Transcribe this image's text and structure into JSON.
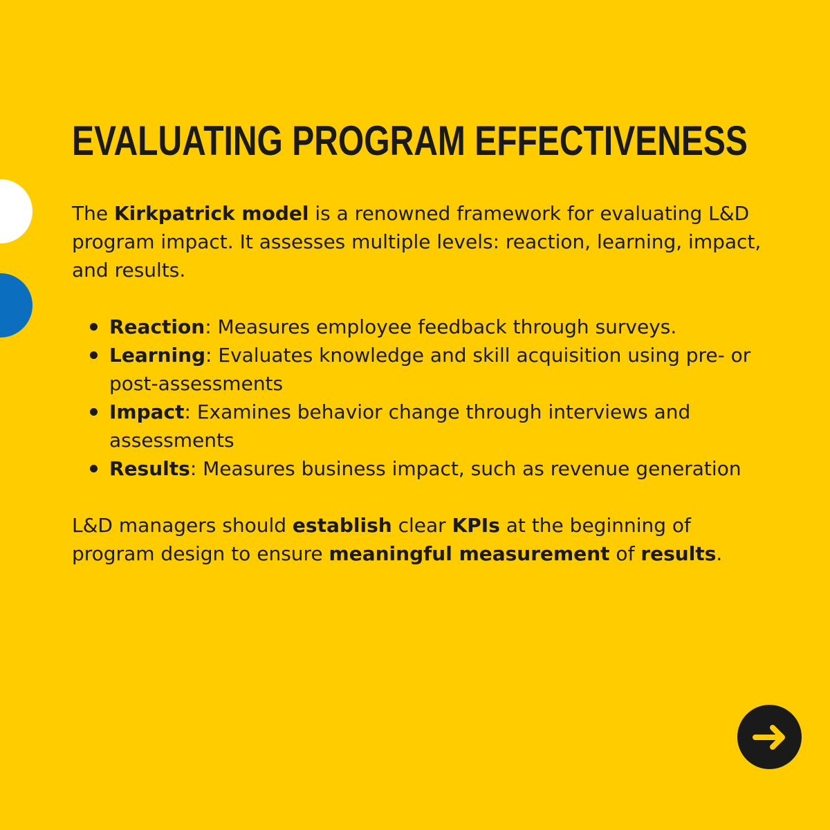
{
  "slide": {
    "title": "EVALUATING PROGRAM EFFECTIVENESS",
    "intro": {
      "prefix": "The ",
      "bold": "Kirkpatrick model",
      "suffix": " is a renowned framework for evaluating L&D program impact. It assesses multiple levels: reaction, learning, impact, and results."
    },
    "levels": [
      {
        "term": "Reaction",
        "description": ": Measures employee feedback through surveys."
      },
      {
        "term": "Learning",
        "description": ": Evaluates knowledge and skill acquisition using pre- or post-assessments"
      },
      {
        "term": "Impact",
        "description": ": Examines behavior change through interviews and assessments"
      },
      {
        "term": "Results",
        "description": ": Measures business impact, such as revenue generation"
      }
    ],
    "closing": {
      "t1": "L&D managers should ",
      "b1": "establish",
      "t2": " clear ",
      "b2": "KPIs",
      "t3": " at the beginning of program design to ensure ",
      "b3": "meaningful measurement",
      "t4": " of ",
      "b4": "results",
      "t5": "."
    }
  },
  "colors": {
    "background": "#FFCC00",
    "text": "#1a1a1a",
    "accent_white": "#FFFFFF",
    "accent_blue": "#0B6EBF",
    "button": "#1a1a1a",
    "button_icon": "#FFCC00"
  },
  "icons": {
    "next": "arrow-right-icon"
  }
}
